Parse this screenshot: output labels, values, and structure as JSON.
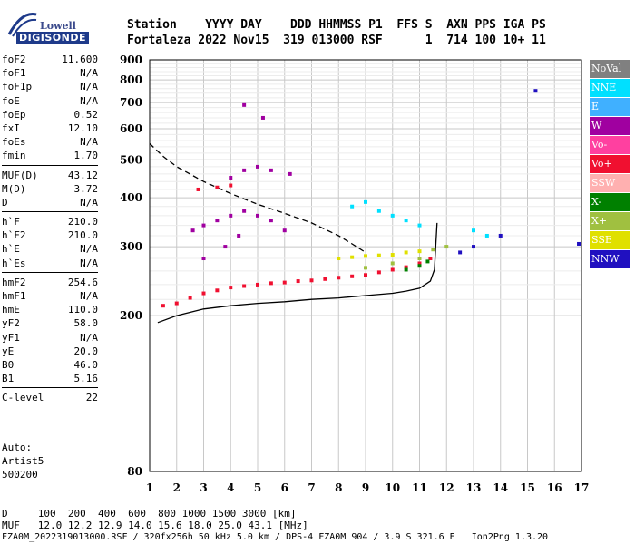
{
  "logo": {
    "brand_top": "Lowell",
    "brand_bottom": "DIGISONDE"
  },
  "header": {
    "line1": "Station    YYYY DAY    DDD HHMMSS P1  FFS S  AXN PPS IGA PS",
    "line2": "Fortaleza 2022 Nov15  319 013000 RSF      1  714 100 10+ 11"
  },
  "params": [
    {
      "k": "foF2",
      "v": "11.600"
    },
    {
      "k": "foF1",
      "v": "N/A"
    },
    {
      "k": "foF1p",
      "v": "N/A"
    },
    {
      "k": "foE",
      "v": "N/A"
    },
    {
      "k": "foEp",
      "v": "0.52"
    },
    {
      "k": "fxI",
      "v": "12.10"
    },
    {
      "k": "foEs",
      "v": "N/A"
    },
    {
      "k": "fmin",
      "v": "1.70"
    },
    {
      "k": "MUF(D)",
      "v": "43.12",
      "sep": true
    },
    {
      "k": "M(D)",
      "v": "3.72"
    },
    {
      "k": "D",
      "v": "N/A"
    },
    {
      "k": "h`F",
      "v": "210.0",
      "sep": true
    },
    {
      "k": "h`F2",
      "v": "210.0"
    },
    {
      "k": "h`E",
      "v": "N/A"
    },
    {
      "k": "h`Es",
      "v": "N/A"
    },
    {
      "k": "hmF2",
      "v": "254.6",
      "sep": true
    },
    {
      "k": "hmF1",
      "v": "N/A"
    },
    {
      "k": "hmE",
      "v": "110.0"
    },
    {
      "k": "yF2",
      "v": "58.0"
    },
    {
      "k": "yF1",
      "v": "N/A"
    },
    {
      "k": "yE",
      "v": "20.0"
    },
    {
      "k": "B0",
      "v": "46.0"
    },
    {
      "k": "B1",
      "v": "5.16"
    },
    {
      "k": "C-level",
      "v": "22",
      "sep": true
    }
  ],
  "auto": {
    "l1": "Auto:",
    "l2": "Artist5",
    "l3": "500200"
  },
  "footer": {
    "d_line": "D     100  200  400  600  800 1000 1500 3000 [km]",
    "muf_line": "MUF   12.0 12.2 12.9 14.0 15.6 18.0 25.0 43.1 [MHz]",
    "info_line": "FZA0M_2022319013000.RSF / 320fx256h 50 kHz 5.0 km / DPS-4 FZA0M 904 / 3.9 S 321.6 E   Ion2Png 1.3.20"
  },
  "legend": [
    {
      "label": "NoVal",
      "color": "#808080"
    },
    {
      "label": "NNE",
      "color": "#00e0ff"
    },
    {
      "label": "E",
      "color": "#40b0ff"
    },
    {
      "label": "W",
      "color": "#a000a0"
    },
    {
      "label": "Vo-",
      "color": "#ff40a0"
    },
    {
      "label": "Vo+",
      "color": "#f01030"
    },
    {
      "label": "SSW",
      "color": "#ffb0b0"
    },
    {
      "label": "X-",
      "color": "#008000"
    },
    {
      "label": "X+",
      "color": "#a0c040"
    },
    {
      "label": "SSE",
      "color": "#e0e000"
    },
    {
      "label": "NNW",
      "color": "#2010c0"
    }
  ],
  "chart_data": {
    "type": "scatter",
    "title": "",
    "xlabel": "",
    "ylabel": "",
    "xlim": [
      1,
      17
    ],
    "ylim": [
      80,
      900
    ],
    "x_scale": "linear",
    "y_scale": "log",
    "xticks": [
      1,
      2,
      3,
      4,
      5,
      6,
      7,
      8,
      9,
      10,
      11,
      12,
      13,
      14,
      15,
      16,
      17
    ],
    "yticks": [
      80,
      200,
      300,
      400,
      500,
      600,
      700,
      800,
      900
    ],
    "grid": true,
    "legend_position": "right",
    "series": [
      {
        "name": "Vo+",
        "color": "#f01030",
        "points": [
          [
            1.5,
            212
          ],
          [
            2,
            215
          ],
          [
            2.5,
            222
          ],
          [
            3,
            228
          ],
          [
            3.5,
            232
          ],
          [
            4,
            236
          ],
          [
            4.5,
            238
          ],
          [
            5,
            240
          ],
          [
            5.5,
            242
          ],
          [
            6,
            243
          ],
          [
            6.5,
            245
          ],
          [
            7,
            246
          ],
          [
            7.5,
            248
          ],
          [
            8,
            250
          ],
          [
            8.5,
            252
          ],
          [
            9,
            254
          ],
          [
            9.5,
            258
          ],
          [
            10,
            262
          ],
          [
            10.5,
            266
          ],
          [
            11,
            272
          ],
          [
            11.4,
            280
          ],
          [
            2.8,
            420
          ],
          [
            3.5,
            425
          ],
          [
            4,
            430
          ]
        ]
      },
      {
        "name": "W",
        "color": "#a000a0",
        "points": [
          [
            2.6,
            330
          ],
          [
            3,
            340
          ],
          [
            3.5,
            350
          ],
          [
            4,
            360
          ],
          [
            4.5,
            370
          ],
          [
            5,
            360
          ],
          [
            5.5,
            350
          ],
          [
            6,
            330
          ],
          [
            4,
            450
          ],
          [
            4.5,
            470
          ],
          [
            5,
            480
          ],
          [
            5.5,
            470
          ],
          [
            6.2,
            460
          ],
          [
            3,
            280
          ],
          [
            3.8,
            300
          ],
          [
            4.3,
            320
          ],
          [
            4.5,
            690
          ],
          [
            5.2,
            640
          ]
        ]
      },
      {
        "name": "NNE",
        "color": "#00e0ff",
        "points": [
          [
            8.5,
            380
          ],
          [
            9,
            390
          ],
          [
            9.5,
            370
          ],
          [
            10,
            360
          ],
          [
            10.5,
            350
          ],
          [
            11,
            340
          ],
          [
            13,
            330
          ],
          [
            13.5,
            320
          ]
        ]
      },
      {
        "name": "SSE",
        "color": "#e0e000",
        "points": [
          [
            8,
            280
          ],
          [
            8.5,
            282
          ],
          [
            9,
            284
          ],
          [
            9.5,
            285
          ],
          [
            10,
            286
          ],
          [
            10.5,
            290
          ],
          [
            11,
            292
          ]
        ]
      },
      {
        "name": "X+",
        "color": "#a0c040",
        "points": [
          [
            9,
            265
          ],
          [
            10,
            272
          ],
          [
            11,
            280
          ],
          [
            11.5,
            295
          ],
          [
            12,
            300
          ]
        ]
      },
      {
        "name": "NNW",
        "color": "#2010c0",
        "points": [
          [
            12.5,
            290
          ],
          [
            13,
            300
          ],
          [
            14,
            320
          ],
          [
            15.3,
            750
          ],
          [
            16.9,
            305
          ]
        ]
      },
      {
        "name": "X-",
        "color": "#008000",
        "points": [
          [
            10.5,
            262
          ],
          [
            11,
            268
          ],
          [
            11.3,
            275
          ]
        ]
      }
    ],
    "curves": [
      {
        "name": "profile",
        "points": [
          [
            1.3,
            192
          ],
          [
            2,
            200
          ],
          [
            3,
            208
          ],
          [
            4,
            212
          ],
          [
            5,
            215
          ],
          [
            6,
            217
          ],
          [
            7,
            220
          ],
          [
            8,
            222
          ],
          [
            9,
            225
          ],
          [
            10,
            228
          ],
          [
            10.5,
            231
          ],
          [
            11,
            235
          ],
          [
            11.4,
            245
          ],
          [
            11.55,
            262
          ],
          [
            11.6,
            300
          ],
          [
            11.65,
            345
          ]
        ]
      },
      {
        "name": "muf_dashed",
        "points": [
          [
            1,
            550
          ],
          [
            1.5,
            510
          ],
          [
            2,
            480
          ],
          [
            3,
            440
          ],
          [
            4,
            410
          ],
          [
            5,
            385
          ],
          [
            6,
            365
          ],
          [
            7,
            345
          ],
          [
            8,
            320
          ],
          [
            8.5,
            305
          ],
          [
            9,
            290
          ]
        ]
      }
    ]
  }
}
